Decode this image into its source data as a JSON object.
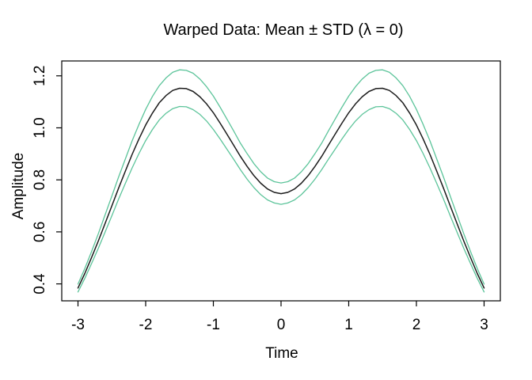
{
  "figure": {
    "background": "#ffffff"
  },
  "chart_data": {
    "type": "line",
    "title": "Warped Data: Mean ± STD (λ = 0)",
    "xlabel": "Time",
    "ylabel": "Amplitude",
    "xlim": [
      -3,
      3
    ],
    "ylim": [
      0.335,
      1.257
    ],
    "x_ticks": [
      "-3",
      "-2",
      "-1",
      "0",
      "1",
      "2",
      "3"
    ],
    "x_tick_values": [
      -3,
      -2,
      -1,
      0,
      1,
      2,
      3
    ],
    "y_ticks": [
      "0.4",
      "0.6",
      "0.8",
      "1.0",
      "1.2"
    ],
    "y_tick_values": [
      0.4,
      0.6,
      0.8,
      1.0,
      1.2
    ],
    "grid": false,
    "legend": "none",
    "box": true,
    "axis_color": "#000000",
    "x": [
      -3,
      -2.9,
      -2.8,
      -2.7,
      -2.6,
      -2.5,
      -2.4,
      -2.3,
      -2.2,
      -2.1,
      -2,
      -1.9,
      -1.8,
      -1.7,
      -1.6,
      -1.5,
      -1.4,
      -1.3,
      -1.2,
      -1.1,
      -1,
      -0.9,
      -0.8,
      -0.7,
      -0.6,
      -0.5,
      -0.4,
      -0.3,
      -0.2,
      -0.1,
      0,
      0.1,
      0.2,
      0.3,
      0.4,
      0.5,
      0.6,
      0.7,
      0.8,
      0.9,
      1,
      1.1,
      1.2,
      1.3,
      1.4,
      1.5,
      1.6,
      1.7,
      1.8,
      1.9,
      2,
      2.1,
      2.2,
      2.3,
      2.4,
      2.5,
      2.6,
      2.7,
      2.8,
      2.9,
      3
    ],
    "series": [
      {
        "name": "mean",
        "color": "#1b1b1b",
        "width": 1.5,
        "values": [
          0.384,
          0.44,
          0.501,
          0.565,
          0.632,
          0.7,
          0.768,
          0.834,
          0.898,
          0.957,
          1.011,
          1.057,
          1.096,
          1.124,
          1.144,
          1.152,
          1.151,
          1.14,
          1.12,
          1.092,
          1.058,
          1.018,
          0.976,
          0.933,
          0.89,
          0.851,
          0.816,
          0.787,
          0.765,
          0.752,
          0.747,
          0.752,
          0.765,
          0.787,
          0.816,
          0.851,
          0.89,
          0.933,
          0.976,
          1.018,
          1.058,
          1.092,
          1.12,
          1.14,
          1.151,
          1.152,
          1.144,
          1.124,
          1.096,
          1.057,
          1.011,
          0.957,
          0.898,
          0.834,
          0.768,
          0.7,
          0.632,
          0.565,
          0.501,
          0.44,
          0.384
        ]
      },
      {
        "name": "mean-plus-std",
        "color": "#5cc49a",
        "width": 1.3,
        "values": [
          0.399,
          0.459,
          0.524,
          0.593,
          0.665,
          0.738,
          0.811,
          0.881,
          0.95,
          1.013,
          1.071,
          1.121,
          1.162,
          1.192,
          1.214,
          1.223,
          1.221,
          1.21,
          1.188,
          1.158,
          1.122,
          1.079,
          1.034,
          0.988,
          0.941,
          0.9,
          0.862,
          0.831,
          0.807,
          0.793,
          0.788,
          0.793,
          0.807,
          0.831,
          0.862,
          0.9,
          0.941,
          0.988,
          1.034,
          1.079,
          1.122,
          1.158,
          1.188,
          1.21,
          1.221,
          1.223,
          1.214,
          1.192,
          1.162,
          1.121,
          1.071,
          1.013,
          0.95,
          0.881,
          0.811,
          0.738,
          0.665,
          0.593,
          0.524,
          0.459,
          0.399
        ]
      },
      {
        "name": "mean-minus-std",
        "color": "#5cc49a",
        "width": 1.3,
        "values": [
          0.369,
          0.421,
          0.478,
          0.537,
          0.599,
          0.662,
          0.726,
          0.787,
          0.846,
          0.901,
          0.951,
          0.994,
          1.03,
          1.056,
          1.074,
          1.082,
          1.081,
          1.07,
          1.052,
          1.026,
          0.994,
          0.957,
          0.918,
          0.879,
          0.839,
          0.802,
          0.77,
          0.743,
          0.723,
          0.711,
          0.706,
          0.711,
          0.723,
          0.743,
          0.77,
          0.802,
          0.839,
          0.879,
          0.918,
          0.957,
          0.994,
          1.026,
          1.052,
          1.07,
          1.081,
          1.082,
          1.074,
          1.056,
          1.03,
          0.994,
          0.951,
          0.901,
          0.846,
          0.787,
          0.726,
          0.662,
          0.599,
          0.537,
          0.478,
          0.421,
          0.369
        ]
      }
    ]
  }
}
